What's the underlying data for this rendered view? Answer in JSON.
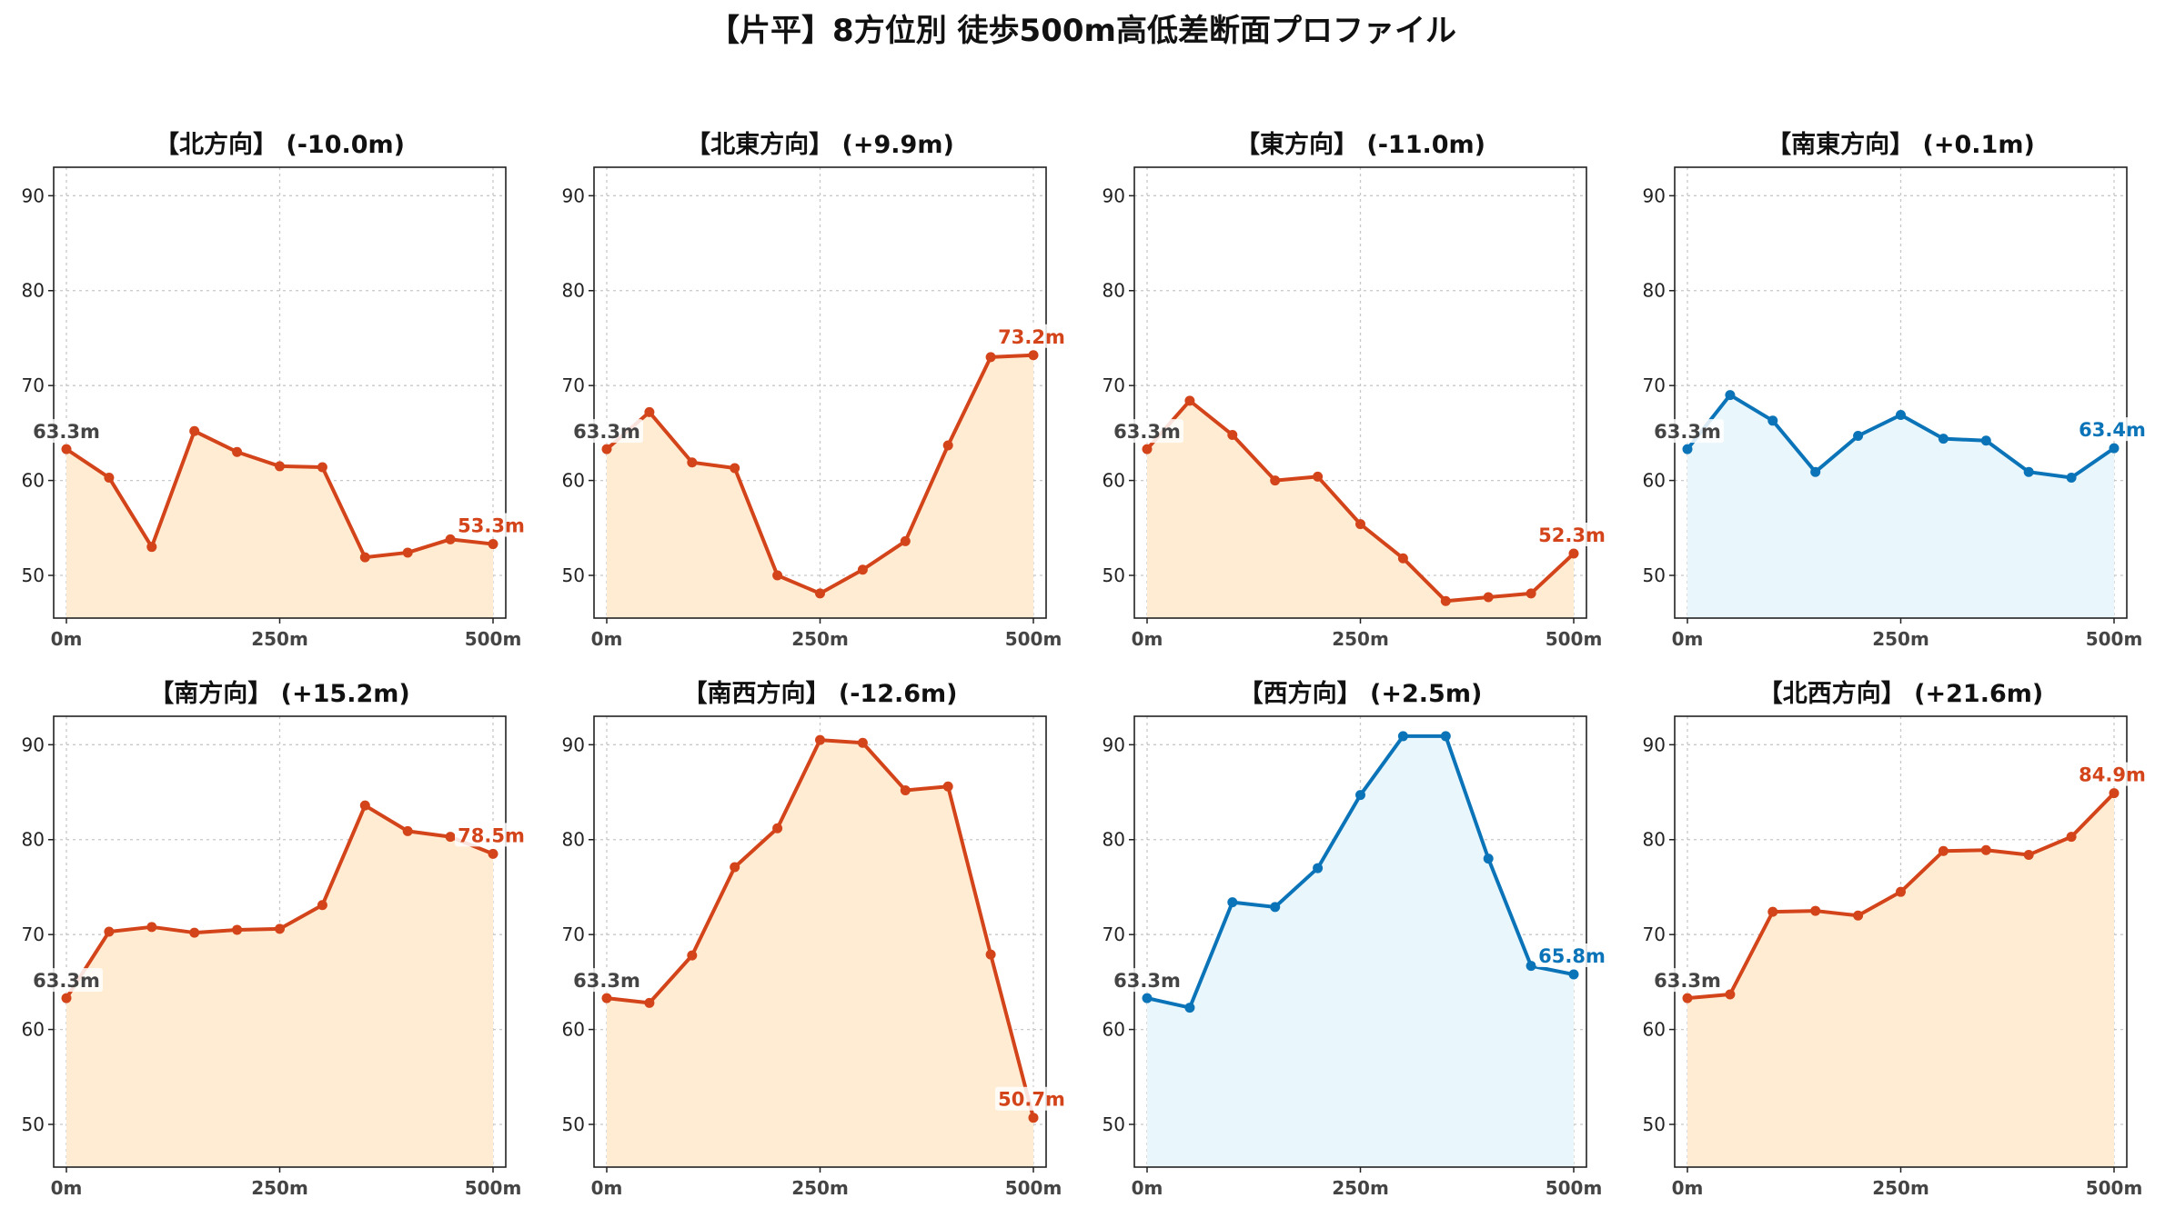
{
  "title": "【片平】8方位別 徒歩500m高低差断面プロファイル",
  "colors": {
    "up_line": "#d4441a",
    "up_fill": "#ffecd2",
    "flat_line": "#0b74b8",
    "flat_fill": "#e9f6fb",
    "start_label": "#444444"
  },
  "chart_data": [
    {
      "type": "line",
      "title": "【北方向】 (-10.0m)",
      "trend": "down",
      "x": [
        0,
        50,
        100,
        150,
        200,
        250,
        300,
        350,
        400,
        450,
        500
      ],
      "y": [
        63.3,
        60.3,
        53.0,
        65.2,
        63.0,
        61.5,
        61.4,
        51.9,
        52.4,
        53.8,
        53.3
      ],
      "start_label": "63.3m",
      "end_label": "53.3m",
      "xticks": [
        "0m",
        "250m",
        "500m"
      ],
      "yticks": [
        50,
        60,
        70,
        80,
        90
      ],
      "ylim": [
        45.5,
        93
      ],
      "grid": true
    },
    {
      "type": "line",
      "title": "【北東方向】 (+9.9m)",
      "trend": "up",
      "x": [
        0,
        50,
        100,
        150,
        200,
        250,
        300,
        350,
        400,
        450,
        500
      ],
      "y": [
        63.3,
        67.2,
        61.9,
        61.3,
        50.0,
        48.1,
        50.6,
        53.6,
        63.7,
        73.0,
        73.2
      ],
      "start_label": "63.3m",
      "end_label": "73.2m",
      "xticks": [
        "0m",
        "250m",
        "500m"
      ],
      "yticks": [
        50,
        60,
        70,
        80,
        90
      ],
      "ylim": [
        45.5,
        93
      ],
      "grid": true
    },
    {
      "type": "line",
      "title": "【東方向】 (-11.0m)",
      "trend": "down",
      "x": [
        0,
        50,
        100,
        150,
        200,
        250,
        300,
        350,
        400,
        450,
        500
      ],
      "y": [
        63.3,
        68.4,
        64.8,
        60.0,
        60.4,
        55.4,
        51.8,
        47.3,
        47.7,
        48.1,
        52.3
      ],
      "start_label": "63.3m",
      "end_label": "52.3m",
      "xticks": [
        "0m",
        "250m",
        "500m"
      ],
      "yticks": [
        50,
        60,
        70,
        80,
        90
      ],
      "ylim": [
        45.5,
        93
      ],
      "grid": true
    },
    {
      "type": "line",
      "title": "【南東方向】 (+0.1m)",
      "trend": "flat",
      "x": [
        0,
        50,
        100,
        150,
        200,
        250,
        300,
        350,
        400,
        450,
        500
      ],
      "y": [
        63.3,
        69.0,
        66.3,
        60.9,
        64.7,
        66.9,
        64.4,
        64.2,
        60.9,
        60.3,
        63.4
      ],
      "start_label": "63.3m",
      "end_label": "63.4m",
      "xticks": [
        "0m",
        "250m",
        "500m"
      ],
      "yticks": [
        50,
        60,
        70,
        80,
        90
      ],
      "ylim": [
        45.5,
        93
      ],
      "grid": true
    },
    {
      "type": "line",
      "title": "【南方向】 (+15.2m)",
      "trend": "up",
      "x": [
        0,
        50,
        100,
        150,
        200,
        250,
        300,
        350,
        400,
        450,
        500
      ],
      "y": [
        63.3,
        70.3,
        70.8,
        70.2,
        70.5,
        70.6,
        73.1,
        83.6,
        80.9,
        80.3,
        78.5
      ],
      "start_label": "63.3m",
      "end_label": "78.5m",
      "xticks": [
        "0m",
        "250m",
        "500m"
      ],
      "yticks": [
        50,
        60,
        70,
        80,
        90
      ],
      "ylim": [
        45.5,
        93
      ],
      "grid": true
    },
    {
      "type": "line",
      "title": "【南西方向】 (-12.6m)",
      "trend": "down",
      "x": [
        0,
        50,
        100,
        150,
        200,
        250,
        300,
        350,
        400,
        450,
        500
      ],
      "y": [
        63.3,
        62.8,
        67.8,
        77.1,
        81.2,
        90.5,
        90.2,
        85.2,
        85.6,
        67.9,
        50.7
      ],
      "start_label": "63.3m",
      "end_label": "50.7m",
      "xticks": [
        "0m",
        "250m",
        "500m"
      ],
      "yticks": [
        50,
        60,
        70,
        80,
        90
      ],
      "ylim": [
        45.5,
        93
      ],
      "grid": true
    },
    {
      "type": "line",
      "title": "【西方向】 (+2.5m)",
      "trend": "flat",
      "x": [
        0,
        50,
        100,
        150,
        200,
        250,
        300,
        350,
        400,
        450,
        500
      ],
      "y": [
        63.3,
        62.3,
        73.4,
        72.9,
        77.0,
        84.7,
        90.9,
        90.9,
        78.0,
        66.7,
        65.8
      ],
      "start_label": "63.3m",
      "end_label": "65.8m",
      "xticks": [
        "0m",
        "250m",
        "500m"
      ],
      "yticks": [
        50,
        60,
        70,
        80,
        90
      ],
      "ylim": [
        45.5,
        93
      ],
      "grid": true
    },
    {
      "type": "line",
      "title": "【北西方向】 (+21.6m)",
      "trend": "up",
      "x": [
        0,
        50,
        100,
        150,
        200,
        250,
        300,
        350,
        400,
        450,
        500
      ],
      "y": [
        63.3,
        63.7,
        72.4,
        72.5,
        72.0,
        74.5,
        78.8,
        78.9,
        78.4,
        80.3,
        84.9
      ],
      "start_label": "63.3m",
      "end_label": "84.9m",
      "xticks": [
        "0m",
        "250m",
        "500m"
      ],
      "yticks": [
        50,
        60,
        70,
        80,
        90
      ],
      "ylim": [
        45.5,
        93
      ],
      "grid": true
    }
  ]
}
